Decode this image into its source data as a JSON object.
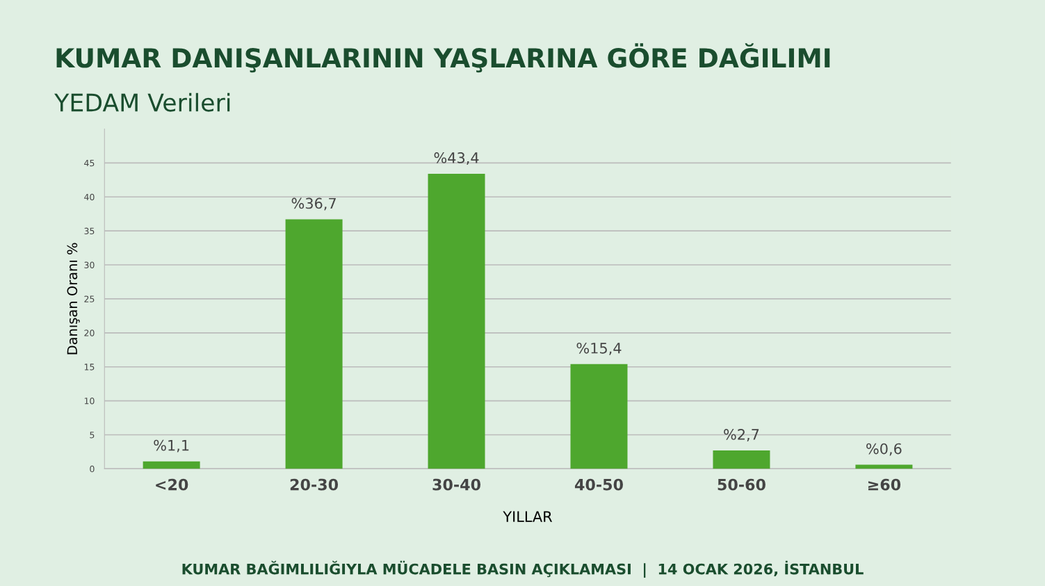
{
  "chart_data": {
    "type": "bar",
    "title": "KUMAR DANIŞANLARININ YAŞLARINA GÖRE DAĞILIMI",
    "subtitle": "YEDAM Verileri",
    "xlabel": "YILLAR",
    "ylabel": "Danışan Oranı %",
    "categories": [
      "<20",
      "20-30",
      "30-40",
      "40-50",
      "50-60",
      "≥60"
    ],
    "values": [
      1.1,
      36.7,
      43.4,
      15.4,
      2.7,
      0.6
    ],
    "value_labels": [
      "%1,1",
      "%36,7",
      "%43,4",
      "%15,4",
      "%2,7",
      "%0,6"
    ],
    "color": "#4ea72e",
    "ylim": [
      0,
      50
    ],
    "yticks": [
      0,
      5,
      10,
      15,
      20,
      25,
      30,
      35,
      40,
      45
    ],
    "grid": "y",
    "annotations": [
      "KUMAR BAĞIMLILIĞIYLA MÜCADELE BASIN AÇIKLAMASI  |  14 OCAK 2026, İSTANBUL"
    ]
  }
}
